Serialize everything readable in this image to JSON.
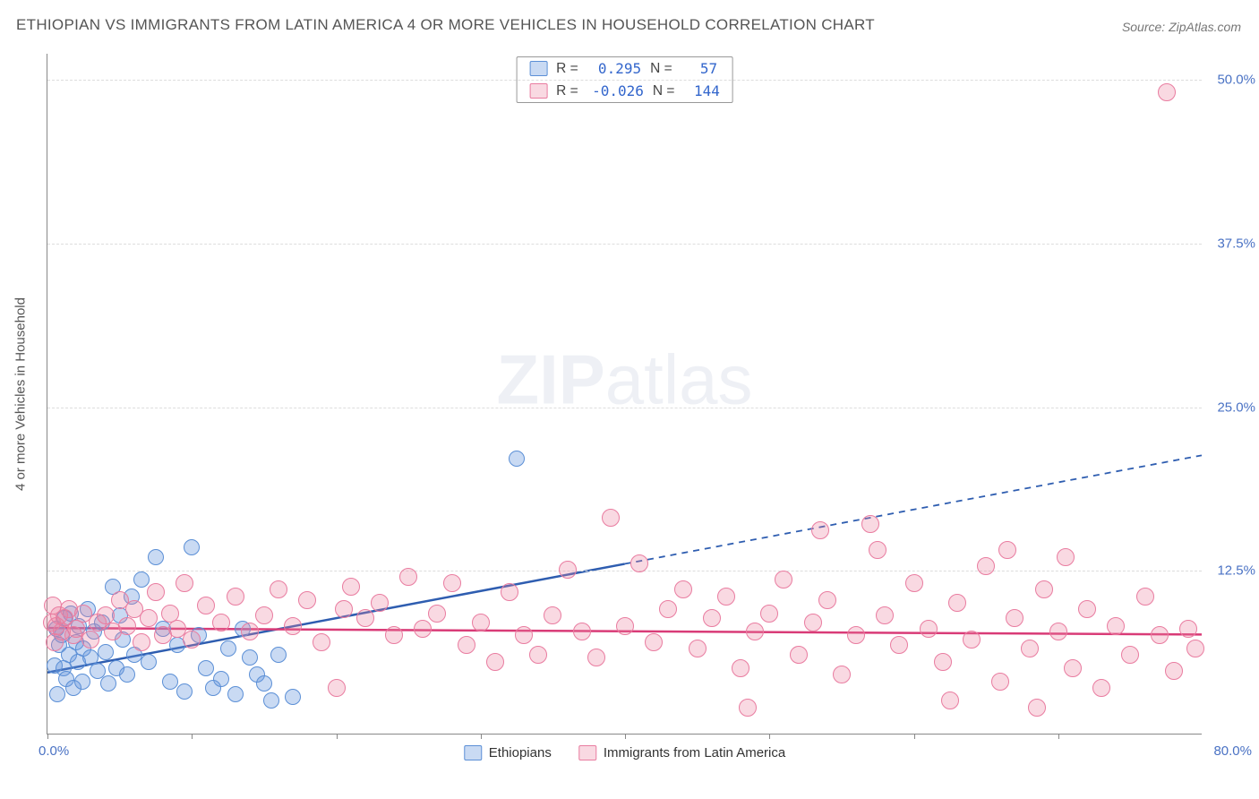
{
  "title": "ETHIOPIAN VS IMMIGRANTS FROM LATIN AMERICA 4 OR MORE VEHICLES IN HOUSEHOLD CORRELATION CHART",
  "source_label": "Source: ZipAtlas.com",
  "watermark_bold": "ZIP",
  "watermark_rest": "atlas",
  "y_axis_title": "4 or more Vehicles in Household",
  "xlim": [
    0,
    80
  ],
  "ylim": [
    0,
    52
  ],
  "x_min_label": "0.0%",
  "x_max_label": "80.0%",
  "y_ticks": [
    {
      "v": 12.5,
      "label": "12.5%"
    },
    {
      "v": 25.0,
      "label": "25.0%"
    },
    {
      "v": 37.5,
      "label": "37.5%"
    },
    {
      "v": 50.0,
      "label": "50.0%"
    }
  ],
  "x_tick_positions": [
    0,
    10,
    20,
    30,
    40,
    50,
    60,
    70
  ],
  "series": [
    {
      "name": "Ethiopians",
      "color_fill": "rgba(100,150,220,0.35)",
      "color_stroke": "#5b8fd6",
      "line_color": "#2e5db0",
      "marker_radius": 9,
      "stats": {
        "R": "0.295",
        "N": "57"
      },
      "trend": {
        "x1": 0,
        "y1": 4.7,
        "x2": 40,
        "y2": 13.0,
        "ext_x2": 80,
        "ext_y2": 21.3
      },
      "points": [
        [
          0.5,
          5.2
        ],
        [
          0.6,
          8.0
        ],
        [
          0.7,
          3.0
        ],
        [
          0.8,
          6.8
        ],
        [
          1.0,
          7.5
        ],
        [
          1.1,
          5.0
        ],
        [
          1.2,
          8.8
        ],
        [
          1.3,
          4.2
        ],
        [
          1.5,
          6.0
        ],
        [
          1.6,
          9.2
        ],
        [
          1.8,
          3.5
        ],
        [
          2.0,
          7.0
        ],
        [
          2.1,
          5.5
        ],
        [
          2.2,
          8.2
        ],
        [
          2.4,
          4.0
        ],
        [
          2.5,
          6.5
        ],
        [
          2.8,
          9.5
        ],
        [
          3.0,
          5.8
        ],
        [
          3.2,
          7.8
        ],
        [
          3.5,
          4.8
        ],
        [
          3.8,
          8.5
        ],
        [
          4.0,
          6.2
        ],
        [
          4.2,
          3.8
        ],
        [
          4.5,
          11.2
        ],
        [
          4.8,
          5.0
        ],
        [
          5.0,
          9.0
        ],
        [
          5.2,
          7.2
        ],
        [
          5.5,
          4.5
        ],
        [
          5.8,
          10.5
        ],
        [
          6.0,
          6.0
        ],
        [
          6.5,
          11.8
        ],
        [
          7.0,
          5.5
        ],
        [
          7.5,
          13.5
        ],
        [
          8.0,
          8.0
        ],
        [
          8.5,
          4.0
        ],
        [
          9.0,
          6.8
        ],
        [
          9.5,
          3.2
        ],
        [
          10.0,
          14.2
        ],
        [
          10.5,
          7.5
        ],
        [
          11.0,
          5.0
        ],
        [
          11.5,
          3.5
        ],
        [
          12.0,
          4.2
        ],
        [
          12.5,
          6.5
        ],
        [
          13.0,
          3.0
        ],
        [
          13.5,
          8.0
        ],
        [
          14.0,
          5.8
        ],
        [
          14.5,
          4.5
        ],
        [
          15.0,
          3.8
        ],
        [
          15.5,
          2.5
        ],
        [
          16.0,
          6.0
        ],
        [
          17.0,
          2.8
        ],
        [
          32.5,
          21.0
        ]
      ]
    },
    {
      "name": "Immigrants from Latin America",
      "color_fill": "rgba(235,130,160,0.30)",
      "color_stroke": "#e97ca0",
      "line_color": "#d93b77",
      "marker_radius": 10,
      "stats": {
        "R": "-0.026",
        "N": "144"
      },
      "trend": {
        "x1": 0,
        "y1": 8.1,
        "x2": 80,
        "y2": 7.6
      },
      "points": [
        [
          0.3,
          8.5
        ],
        [
          0.4,
          9.8
        ],
        [
          0.5,
          7.0
        ],
        [
          0.6,
          8.2
        ],
        [
          0.8,
          9.0
        ],
        [
          1.0,
          7.8
        ],
        [
          1.2,
          8.8
        ],
        [
          1.5,
          9.5
        ],
        [
          1.8,
          7.5
        ],
        [
          2.0,
          8.0
        ],
        [
          2.5,
          9.2
        ],
        [
          3.0,
          7.2
        ],
        [
          3.5,
          8.5
        ],
        [
          4.0,
          9.0
        ],
        [
          4.5,
          7.8
        ],
        [
          5.0,
          10.2
        ],
        [
          5.5,
          8.2
        ],
        [
          6.0,
          9.5
        ],
        [
          6.5,
          7.0
        ],
        [
          7.0,
          8.8
        ],
        [
          7.5,
          10.8
        ],
        [
          8.0,
          7.5
        ],
        [
          8.5,
          9.2
        ],
        [
          9.0,
          8.0
        ],
        [
          9.5,
          11.5
        ],
        [
          10.0,
          7.2
        ],
        [
          11.0,
          9.8
        ],
        [
          12.0,
          8.5
        ],
        [
          13.0,
          10.5
        ],
        [
          14.0,
          7.8
        ],
        [
          15.0,
          9.0
        ],
        [
          16.0,
          11.0
        ],
        [
          17.0,
          8.2
        ],
        [
          18.0,
          10.2
        ],
        [
          19.0,
          7.0
        ],
        [
          20.0,
          3.5
        ],
        [
          20.5,
          9.5
        ],
        [
          21.0,
          11.2
        ],
        [
          22.0,
          8.8
        ],
        [
          23.0,
          10.0
        ],
        [
          24.0,
          7.5
        ],
        [
          25.0,
          12.0
        ],
        [
          26.0,
          8.0
        ],
        [
          27.0,
          9.2
        ],
        [
          28.0,
          11.5
        ],
        [
          29.0,
          6.8
        ],
        [
          30.0,
          8.5
        ],
        [
          31.0,
          5.5
        ],
        [
          32.0,
          10.8
        ],
        [
          33.0,
          7.5
        ],
        [
          34.0,
          6.0
        ],
        [
          35.0,
          9.0
        ],
        [
          36.0,
          12.5
        ],
        [
          37.0,
          7.8
        ],
        [
          38.0,
          5.8
        ],
        [
          39.0,
          16.5
        ],
        [
          40.0,
          8.2
        ],
        [
          41.0,
          13.0
        ],
        [
          42.0,
          7.0
        ],
        [
          43.0,
          9.5
        ],
        [
          44.0,
          11.0
        ],
        [
          45.0,
          6.5
        ],
        [
          46.0,
          8.8
        ],
        [
          47.0,
          10.5
        ],
        [
          48.0,
          5.0
        ],
        [
          48.5,
          2.0
        ],
        [
          49.0,
          7.8
        ],
        [
          50.0,
          9.2
        ],
        [
          51.0,
          11.8
        ],
        [
          52.0,
          6.0
        ],
        [
          53.0,
          8.5
        ],
        [
          53.5,
          15.5
        ],
        [
          54.0,
          10.2
        ],
        [
          55.0,
          4.5
        ],
        [
          56.0,
          7.5
        ],
        [
          57.0,
          16.0
        ],
        [
          57.5,
          14.0
        ],
        [
          58.0,
          9.0
        ],
        [
          59.0,
          6.8
        ],
        [
          60.0,
          11.5
        ],
        [
          61.0,
          8.0
        ],
        [
          62.0,
          5.5
        ],
        [
          62.5,
          2.5
        ],
        [
          63.0,
          10.0
        ],
        [
          64.0,
          7.2
        ],
        [
          65.0,
          12.8
        ],
        [
          66.0,
          4.0
        ],
        [
          66.5,
          14.0
        ],
        [
          67.0,
          8.8
        ],
        [
          68.0,
          6.5
        ],
        [
          68.5,
          2.0
        ],
        [
          69.0,
          11.0
        ],
        [
          70.0,
          7.8
        ],
        [
          70.5,
          13.5
        ],
        [
          71.0,
          5.0
        ],
        [
          72.0,
          9.5
        ],
        [
          73.0,
          3.5
        ],
        [
          74.0,
          8.2
        ],
        [
          75.0,
          6.0
        ],
        [
          76.0,
          10.5
        ],
        [
          77.0,
          7.5
        ],
        [
          77.5,
          49.0
        ],
        [
          78.0,
          4.8
        ],
        [
          79.0,
          8.0
        ],
        [
          79.5,
          6.5
        ]
      ]
    }
  ]
}
